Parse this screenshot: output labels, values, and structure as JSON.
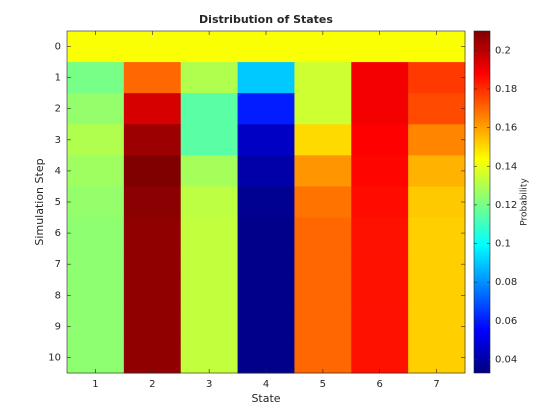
{
  "chart_data": {
    "type": "heatmap",
    "title": "Distribution of States",
    "xlabel": "State",
    "ylabel": "Simulation Step",
    "colorbar_label": "Probability",
    "colormap": "jet",
    "x": [
      1,
      2,
      3,
      4,
      5,
      6,
      7
    ],
    "y": [
      0,
      1,
      2,
      3,
      4,
      5,
      6,
      7,
      8,
      9,
      10
    ],
    "z": [
      [
        0.143,
        0.143,
        0.143,
        0.143,
        0.143,
        0.143,
        0.143
      ],
      [
        0.12,
        0.17,
        0.13,
        0.09,
        0.135,
        0.19,
        0.178
      ],
      [
        0.125,
        0.195,
        0.115,
        0.06,
        0.135,
        0.19,
        0.175
      ],
      [
        0.13,
        0.205,
        0.115,
        0.045,
        0.15,
        0.188,
        0.165
      ],
      [
        0.127,
        0.21,
        0.128,
        0.04,
        0.162,
        0.187,
        0.157
      ],
      [
        0.125,
        0.208,
        0.132,
        0.036,
        0.168,
        0.186,
        0.153
      ],
      [
        0.124,
        0.207,
        0.133,
        0.035,
        0.17,
        0.185,
        0.152
      ],
      [
        0.124,
        0.207,
        0.133,
        0.035,
        0.17,
        0.185,
        0.152
      ],
      [
        0.124,
        0.207,
        0.133,
        0.035,
        0.17,
        0.185,
        0.152
      ],
      [
        0.124,
        0.207,
        0.133,
        0.035,
        0.17,
        0.185,
        0.152
      ],
      [
        0.124,
        0.207,
        0.133,
        0.035,
        0.17,
        0.185,
        0.152
      ]
    ],
    "clim": [
      0.033,
      0.21
    ],
    "cticks": [
      0.04,
      0.06,
      0.08,
      0.1,
      0.12,
      0.14,
      0.16,
      0.18,
      0.2
    ]
  }
}
